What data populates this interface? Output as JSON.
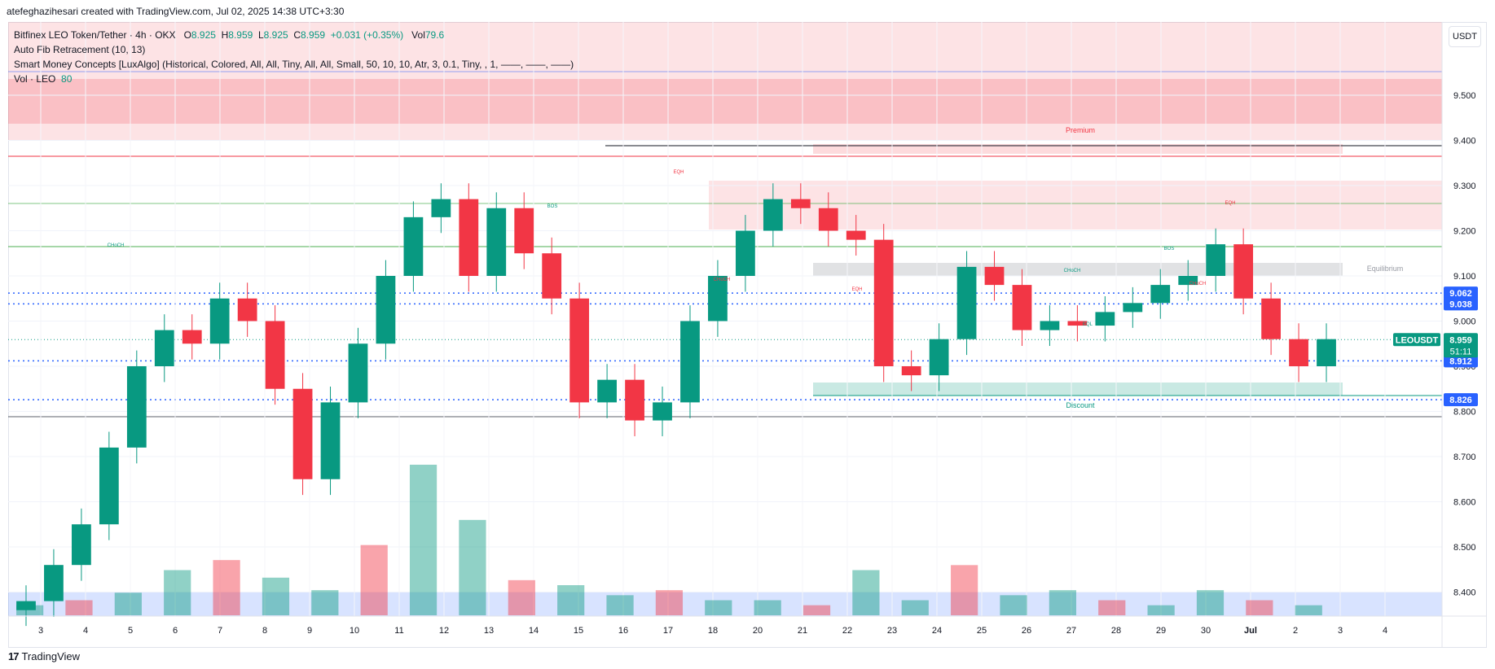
{
  "header": {
    "author_line": "atefeghazihesari created with TradingView.com, Jul 02, 2025 14:38 UTC+3:30"
  },
  "legend": {
    "symbol": "Bitfinex LEO Token/Tether · 4h · OKX",
    "open_label": "O",
    "open": "8.925",
    "high_label": "H",
    "high": "8.959",
    "low_label": "L",
    "low": "8.925",
    "close_label": "C",
    "close": "8.959",
    "change": "+0.031 (+0.35%)",
    "vol_label": "Vol",
    "vol": "79.6",
    "fib": "Auto Fib Retracement (10, 13)",
    "smc": "Smart Money Concepts [LuxAlgo] (Historical, Colored, All, All, Tiny, All, All, Small, 50, 10, 10, Atr, 3, 0.1, Tiny, , 1, ——, ——, ——)",
    "vol_series": "Vol · LEO",
    "vol_series_value": "80"
  },
  "currency_button": "USDT",
  "price_scale": [
    "9.500",
    "9.400",
    "9.300",
    "9.200",
    "9.100",
    "9.000",
    "8.900",
    "8.800",
    "8.700",
    "8.600",
    "8.500",
    "8.400"
  ],
  "price_badges": [
    {
      "label": "9.062",
      "price": 9.062,
      "color": "#2962ff"
    },
    {
      "label": "9.038",
      "price": 9.038,
      "color": "#2962ff"
    },
    {
      "label": "8.912",
      "price": 8.912,
      "color": "#2962ff"
    },
    {
      "label": "8.826",
      "price": 8.826,
      "color": "#2962ff"
    }
  ],
  "current_price": {
    "symbol": "LEOUSDT",
    "price": "8.959",
    "countdown": "51:11",
    "price_value": 8.959,
    "color": "#089981"
  },
  "time_axis": [
    "3",
    "4",
    "5",
    "6",
    "7",
    "8",
    "9",
    "10",
    "11",
    "12",
    "13",
    "14",
    "15",
    "16",
    "17",
    "18",
    "20",
    "21",
    "22",
    "23",
    "24",
    "25",
    "26",
    "27",
    "28",
    "29",
    "30",
    "Jul",
    "2",
    "3",
    "4"
  ],
  "zones": {
    "premium": "Premium",
    "equilibrium": "Equilibrium",
    "discount": "Discount"
  },
  "structure_labels": [
    "CHoCH",
    "BOS",
    "EQH",
    "CHoCH",
    "EQH",
    "CHoCH",
    "BOS",
    "CHoCH",
    "EQH",
    "EQL"
  ],
  "colors": {
    "up": "#089981",
    "down": "#f23645",
    "premium_zone": "#f23645",
    "discount_zone": "#089981",
    "volume_band": "#2962ff",
    "fib_line": "#2962ff"
  },
  "footer": {
    "brand": "TradingView"
  },
  "chart_data": {
    "type": "candlestick",
    "title": "Bitfinex LEO Token/Tether · 4h · OKX",
    "ylim": [
      8.32,
      9.62
    ],
    "series": [
      {
        "name": "LEOUSDT",
        "values": [
          8.38,
          8.46,
          8.55,
          8.72,
          8.9,
          8.98,
          8.95,
          9.05,
          9.0,
          8.85,
          8.65,
          8.82,
          8.95,
          9.1,
          9.23,
          9.27,
          9.1,
          9.25,
          9.15,
          9.05,
          8.82,
          8.87,
          8.78,
          8.82,
          9.0,
          9.1,
          9.2,
          9.27,
          9.25,
          9.2,
          9.18,
          8.9,
          8.88,
          8.96,
          9.12,
          9.08,
          8.98,
          9.0,
          8.99,
          9.02,
          9.04,
          9.08,
          9.1,
          9.17,
          9.05,
          8.96,
          8.9,
          8.96
        ]
      },
      {
        "name": "Volume",
        "values": [
          4,
          6,
          9,
          18,
          22,
          15,
          10,
          28,
          60,
          38,
          14,
          12,
          8,
          10,
          6,
          6,
          4,
          18,
          6,
          20,
          8,
          10,
          6,
          4,
          10,
          6,
          4
        ]
      }
    ]
  }
}
